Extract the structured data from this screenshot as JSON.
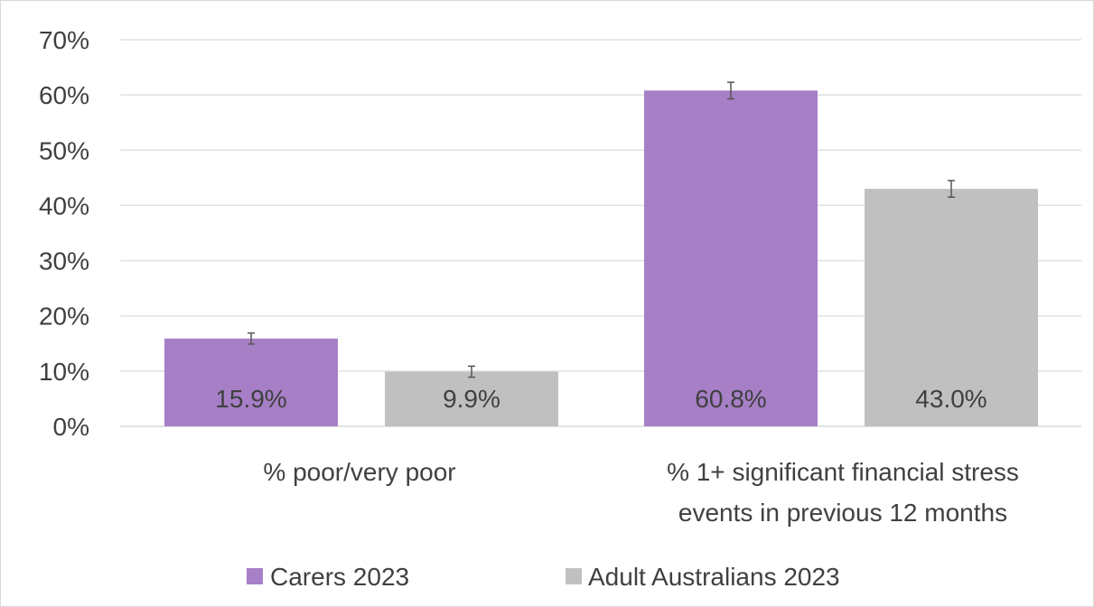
{
  "chart_data": {
    "type": "bar",
    "title": "",
    "xlabel": "",
    "ylabel": "",
    "ylim": [
      0,
      70
    ],
    "y_ticks": [
      0,
      10,
      20,
      30,
      40,
      50,
      60,
      70
    ],
    "y_tick_labels": [
      "0%",
      "10%",
      "20%",
      "30%",
      "40%",
      "50%",
      "60%",
      "70%"
    ],
    "categories": [
      [
        "% poor/very poor"
      ],
      [
        "% 1+ significant financial stress",
        "events in previous 12 months"
      ]
    ],
    "series": [
      {
        "name": "Carers 2023",
        "color": "#a77fc7",
        "values": [
          15.9,
          60.8
        ],
        "data_labels": [
          "15.9%",
          "60.8%"
        ],
        "error": [
          1.0,
          1.5
        ]
      },
      {
        "name": "Adult Australians 2023",
        "color": "#c0c0c0",
        "values": [
          9.9,
          43.0
        ],
        "data_labels": [
          "9.9%",
          "43.0%"
        ],
        "error": [
          1.0,
          1.5
        ]
      }
    ],
    "grid": true,
    "legend_position": "bottom"
  }
}
